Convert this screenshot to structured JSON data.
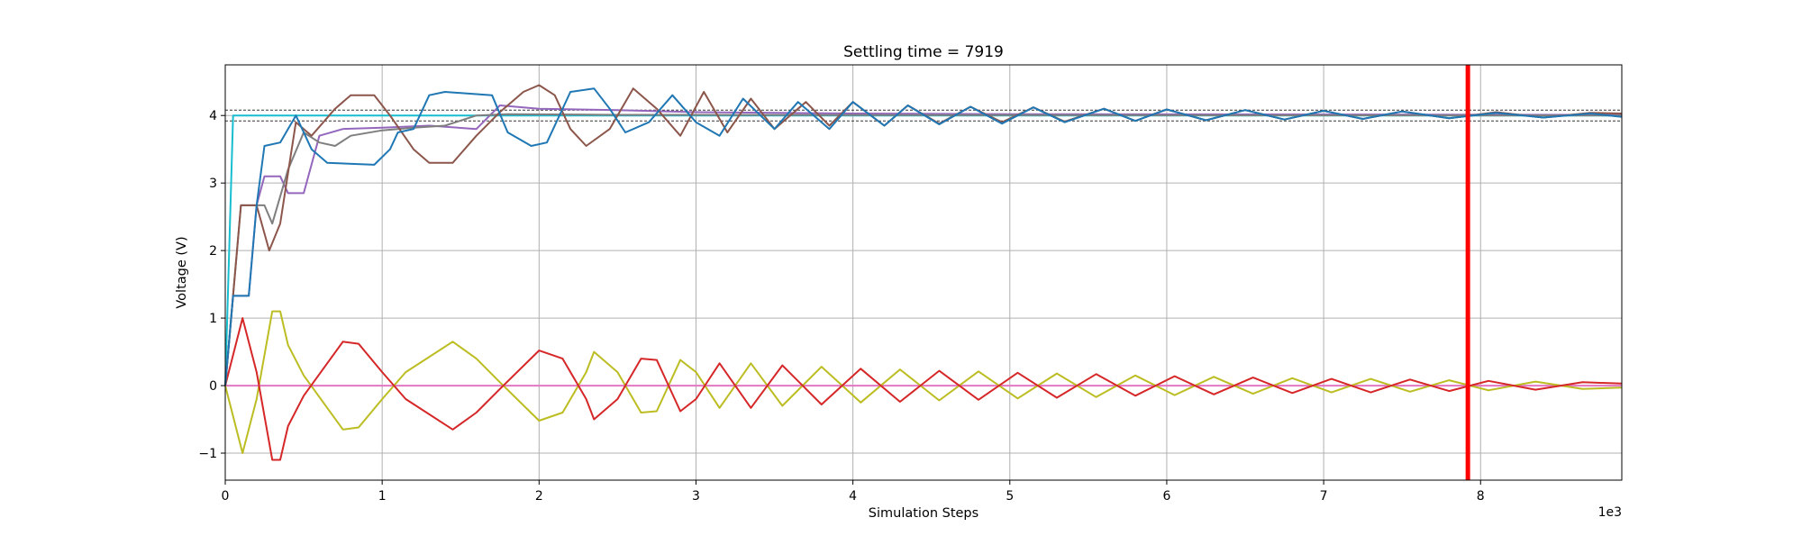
{
  "chart_data": {
    "type": "line",
    "title": "Settling time = 7919",
    "xlabel": "Simulation Steps",
    "ylabel": "Voltage (V)",
    "x_offset_text": "1e3",
    "xlim": [
      0,
      8.9
    ],
    "ylim": [
      -1.4,
      4.75
    ],
    "x_ticks": [
      0,
      1,
      2,
      3,
      4,
      5,
      6,
      7,
      8
    ],
    "x_tick_labels": [
      "0",
      "1",
      "2",
      "3",
      "4",
      "5",
      "6",
      "7",
      "8"
    ],
    "y_ticks": [
      -1,
      0,
      1,
      2,
      3,
      4
    ],
    "y_tick_labels": [
      "−1",
      "0",
      "1",
      "2",
      "3",
      "4"
    ],
    "grid": true,
    "settling_marker": {
      "x": 7.919,
      "color": "#ff0000"
    },
    "tolerance_band": {
      "values": [
        4.08,
        3.92
      ],
      "color": "#333333"
    },
    "series": [
      {
        "color": "#17becf",
        "points": [
          [
            0,
            0
          ],
          [
            0.05,
            4.0
          ],
          [
            8.9,
            4.0
          ]
        ]
      },
      {
        "color": "#e377c2",
        "points": [
          [
            0,
            0
          ],
          [
            8.9,
            0
          ]
        ]
      },
      {
        "color": "#9467bd",
        "points": [
          [
            0,
            0
          ],
          [
            0.05,
            1.33
          ],
          [
            0.15,
            1.33
          ],
          [
            0.2,
            2.67
          ],
          [
            0.25,
            3.1
          ],
          [
            0.35,
            3.1
          ],
          [
            0.4,
            2.85
          ],
          [
            0.5,
            2.85
          ],
          [
            0.6,
            3.7
          ],
          [
            0.75,
            3.8
          ],
          [
            1.0,
            3.82
          ],
          [
            1.3,
            3.85
          ],
          [
            1.6,
            3.8
          ],
          [
            1.75,
            4.15
          ],
          [
            2.0,
            4.1
          ],
          [
            2.5,
            4.08
          ],
          [
            3.0,
            4.05
          ],
          [
            4.0,
            4.03
          ],
          [
            5.0,
            4.02
          ],
          [
            8.9,
            4.01
          ]
        ]
      },
      {
        "color": "#7f7f7f",
        "points": [
          [
            0,
            0
          ],
          [
            0.1,
            2.67
          ],
          [
            0.25,
            2.67
          ],
          [
            0.3,
            2.4
          ],
          [
            0.4,
            3.2
          ],
          [
            0.5,
            3.75
          ],
          [
            0.6,
            3.6
          ],
          [
            0.7,
            3.55
          ],
          [
            0.8,
            3.7
          ],
          [
            1.0,
            3.78
          ],
          [
            1.2,
            3.82
          ],
          [
            1.4,
            3.85
          ],
          [
            1.6,
            4.0
          ],
          [
            1.8,
            4.02
          ],
          [
            2.5,
            4.01
          ],
          [
            8.9,
            4.0
          ]
        ]
      },
      {
        "color": "#bcbd22",
        "points": [
          [
            0,
            0
          ],
          [
            0.11,
            -1.0
          ],
          [
            0.2,
            -0.2
          ],
          [
            0.3,
            1.1
          ],
          [
            0.35,
            1.1
          ],
          [
            0.4,
            0.6
          ],
          [
            0.5,
            0.15
          ],
          [
            0.75,
            -0.65
          ],
          [
            0.85,
            -0.62
          ],
          [
            1.0,
            -0.2
          ],
          [
            1.15,
            0.2
          ],
          [
            1.45,
            0.65
          ],
          [
            1.6,
            0.4
          ],
          [
            1.75,
            0.05
          ],
          [
            2.0,
            -0.52
          ],
          [
            2.15,
            -0.4
          ],
          [
            2.3,
            0.2
          ],
          [
            2.35,
            0.5
          ],
          [
            2.5,
            0.2
          ],
          [
            2.65,
            -0.4
          ],
          [
            2.75,
            -0.38
          ],
          [
            2.9,
            0.38
          ],
          [
            3.0,
            0.2
          ],
          [
            3.15,
            -0.33
          ],
          [
            3.35,
            0.33
          ],
          [
            3.55,
            -0.3
          ],
          [
            3.8,
            0.28
          ],
          [
            4.05,
            -0.25
          ],
          [
            4.3,
            0.24
          ],
          [
            4.55,
            -0.22
          ],
          [
            4.8,
            0.21
          ],
          [
            5.05,
            -0.19
          ],
          [
            5.3,
            0.18
          ],
          [
            5.55,
            -0.17
          ],
          [
            5.8,
            0.15
          ],
          [
            6.05,
            -0.14
          ],
          [
            6.3,
            0.13
          ],
          [
            6.55,
            -0.12
          ],
          [
            6.8,
            0.11
          ],
          [
            7.05,
            -0.1
          ],
          [
            7.3,
            0.1
          ],
          [
            7.55,
            -0.09
          ],
          [
            7.8,
            0.08
          ],
          [
            8.05,
            -0.07
          ],
          [
            8.35,
            0.06
          ],
          [
            8.65,
            -0.05
          ],
          [
            8.9,
            -0.03
          ]
        ]
      },
      {
        "color": "#d62728",
        "points": [
          [
            0,
            0
          ],
          [
            0.11,
            1.0
          ],
          [
            0.2,
            0.2
          ],
          [
            0.3,
            -1.1
          ],
          [
            0.35,
            -1.1
          ],
          [
            0.4,
            -0.6
          ],
          [
            0.5,
            -0.15
          ],
          [
            0.75,
            0.65
          ],
          [
            0.85,
            0.62
          ],
          [
            1.0,
            0.2
          ],
          [
            1.15,
            -0.2
          ],
          [
            1.45,
            -0.65
          ],
          [
            1.6,
            -0.4
          ],
          [
            1.75,
            -0.05
          ],
          [
            2.0,
            0.52
          ],
          [
            2.15,
            0.4
          ],
          [
            2.3,
            -0.2
          ],
          [
            2.35,
            -0.5
          ],
          [
            2.5,
            -0.2
          ],
          [
            2.65,
            0.4
          ],
          [
            2.75,
            0.38
          ],
          [
            2.9,
            -0.38
          ],
          [
            3.0,
            -0.2
          ],
          [
            3.15,
            0.33
          ],
          [
            3.35,
            -0.33
          ],
          [
            3.55,
            0.3
          ],
          [
            3.8,
            -0.28
          ],
          [
            4.05,
            0.25
          ],
          [
            4.3,
            -0.24
          ],
          [
            4.55,
            0.22
          ],
          [
            4.8,
            -0.21
          ],
          [
            5.05,
            0.19
          ],
          [
            5.3,
            -0.18
          ],
          [
            5.55,
            0.17
          ],
          [
            5.8,
            -0.15
          ],
          [
            6.05,
            0.14
          ],
          [
            6.3,
            -0.13
          ],
          [
            6.55,
            0.12
          ],
          [
            6.8,
            -0.11
          ],
          [
            7.05,
            0.1
          ],
          [
            7.3,
            -0.1
          ],
          [
            7.55,
            0.09
          ],
          [
            7.8,
            -0.08
          ],
          [
            8.05,
            0.07
          ],
          [
            8.35,
            -0.06
          ],
          [
            8.65,
            0.05
          ],
          [
            8.9,
            0.03
          ]
        ]
      },
      {
        "color": "#8c564b",
        "points": [
          [
            0,
            0
          ],
          [
            0.1,
            2.67
          ],
          [
            0.2,
            2.67
          ],
          [
            0.28,
            2.0
          ],
          [
            0.35,
            2.4
          ],
          [
            0.45,
            3.9
          ],
          [
            0.55,
            3.7
          ],
          [
            0.7,
            4.1
          ],
          [
            0.8,
            4.3
          ],
          [
            0.95,
            4.3
          ],
          [
            1.05,
            4.0
          ],
          [
            1.2,
            3.5
          ],
          [
            1.3,
            3.3
          ],
          [
            1.45,
            3.3
          ],
          [
            1.6,
            3.7
          ],
          [
            1.75,
            4.05
          ],
          [
            1.9,
            4.35
          ],
          [
            2.0,
            4.45
          ],
          [
            2.1,
            4.3
          ],
          [
            2.2,
            3.8
          ],
          [
            2.3,
            3.55
          ],
          [
            2.45,
            3.8
          ],
          [
            2.6,
            4.4
          ],
          [
            2.75,
            4.1
          ],
          [
            2.9,
            3.7
          ],
          [
            3.05,
            4.35
          ],
          [
            3.2,
            3.75
          ],
          [
            3.35,
            4.25
          ],
          [
            3.5,
            3.8
          ],
          [
            3.7,
            4.2
          ],
          [
            3.85,
            3.85
          ],
          [
            4.0,
            4.2
          ],
          [
            4.2,
            3.85
          ],
          [
            4.35,
            4.15
          ],
          [
            4.55,
            3.88
          ],
          [
            4.75,
            4.13
          ],
          [
            4.95,
            3.9
          ],
          [
            5.15,
            4.12
          ],
          [
            5.35,
            3.91
          ],
          [
            5.6,
            4.1
          ],
          [
            5.8,
            3.92
          ],
          [
            6.0,
            4.09
          ],
          [
            6.25,
            3.93
          ],
          [
            6.5,
            4.08
          ],
          [
            6.75,
            3.94
          ],
          [
            7.0,
            4.07
          ],
          [
            7.25,
            3.95
          ],
          [
            7.5,
            4.06
          ],
          [
            7.8,
            3.96
          ],
          [
            8.1,
            4.05
          ],
          [
            8.4,
            3.97
          ],
          [
            8.7,
            4.04
          ],
          [
            8.9,
            4.03
          ]
        ]
      },
      {
        "color": "#1f77b4",
        "points": [
          [
            0,
            0
          ],
          [
            0.05,
            1.33
          ],
          [
            0.15,
            1.33
          ],
          [
            0.2,
            2.67
          ],
          [
            0.25,
            3.55
          ],
          [
            0.35,
            3.6
          ],
          [
            0.45,
            4.0
          ],
          [
            0.55,
            3.5
          ],
          [
            0.65,
            3.3
          ],
          [
            0.95,
            3.27
          ],
          [
            1.05,
            3.5
          ],
          [
            1.1,
            3.75
          ],
          [
            1.2,
            3.8
          ],
          [
            1.3,
            4.3
          ],
          [
            1.4,
            4.35
          ],
          [
            1.7,
            4.3
          ],
          [
            1.8,
            3.75
          ],
          [
            1.95,
            3.55
          ],
          [
            2.05,
            3.6
          ],
          [
            2.2,
            4.35
          ],
          [
            2.35,
            4.4
          ],
          [
            2.45,
            4.1
          ],
          [
            2.55,
            3.75
          ],
          [
            2.7,
            3.9
          ],
          [
            2.85,
            4.3
          ],
          [
            3.0,
            3.9
          ],
          [
            3.15,
            3.7
          ],
          [
            3.3,
            4.25
          ],
          [
            3.5,
            3.8
          ],
          [
            3.65,
            4.2
          ],
          [
            3.85,
            3.8
          ],
          [
            4.0,
            4.2
          ],
          [
            4.2,
            3.85
          ],
          [
            4.35,
            4.15
          ],
          [
            4.55,
            3.87
          ],
          [
            4.75,
            4.13
          ],
          [
            4.95,
            3.88
          ],
          [
            5.15,
            4.12
          ],
          [
            5.35,
            3.9
          ],
          [
            5.6,
            4.1
          ],
          [
            5.8,
            3.92
          ],
          [
            6.0,
            4.09
          ],
          [
            6.25,
            3.93
          ],
          [
            6.5,
            4.08
          ],
          [
            6.75,
            3.94
          ],
          [
            7.0,
            4.07
          ],
          [
            7.25,
            3.95
          ],
          [
            7.5,
            4.06
          ],
          [
            7.8,
            3.96
          ],
          [
            8.1,
            4.04
          ],
          [
            8.4,
            3.97
          ],
          [
            8.7,
            4.03
          ],
          [
            8.9,
            3.98
          ]
        ]
      }
    ]
  }
}
